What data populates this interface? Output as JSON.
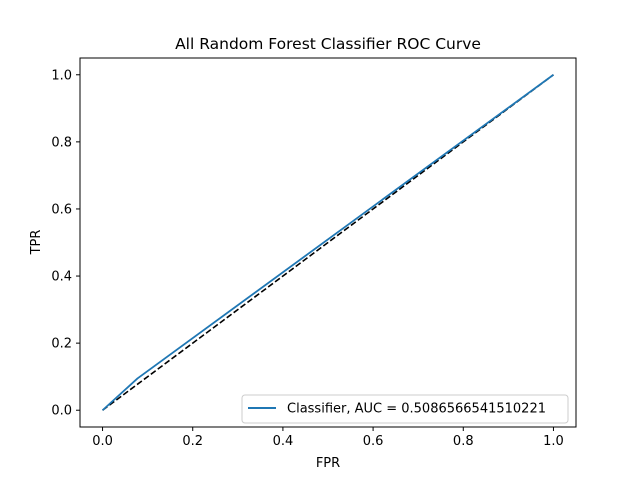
{
  "chart_data": {
    "type": "line",
    "title": "All Random Forest Classifier ROC Curve",
    "xlabel": "FPR",
    "ylabel": "TPR",
    "xlim": [
      -0.05,
      1.05
    ],
    "ylim": [
      -0.05,
      1.05
    ],
    "xticks": [
      0.0,
      0.2,
      0.4,
      0.6,
      0.8,
      1.0
    ],
    "yticks": [
      0.0,
      0.2,
      0.4,
      0.6,
      0.8,
      1.0
    ],
    "xtick_labels": [
      "0.0",
      "0.2",
      "0.4",
      "0.6",
      "0.8",
      "1.0"
    ],
    "ytick_labels": [
      "0.0",
      "0.2",
      "0.4",
      "0.6",
      "0.8",
      "1.0"
    ],
    "grid": false,
    "legend_position": "lower-right",
    "series": [
      {
        "name": "Classifier, AUC = 0.5086566541510221",
        "color": "#1f77b4",
        "style": "solid",
        "x": [
          0.0,
          0.0775,
          1.0
        ],
        "y": [
          0.0,
          0.0948,
          1.0
        ]
      },
      {
        "color": "#000000",
        "style": "dashed",
        "x": [
          0.0,
          1.0
        ],
        "y": [
          0.0,
          1.0
        ]
      }
    ]
  }
}
